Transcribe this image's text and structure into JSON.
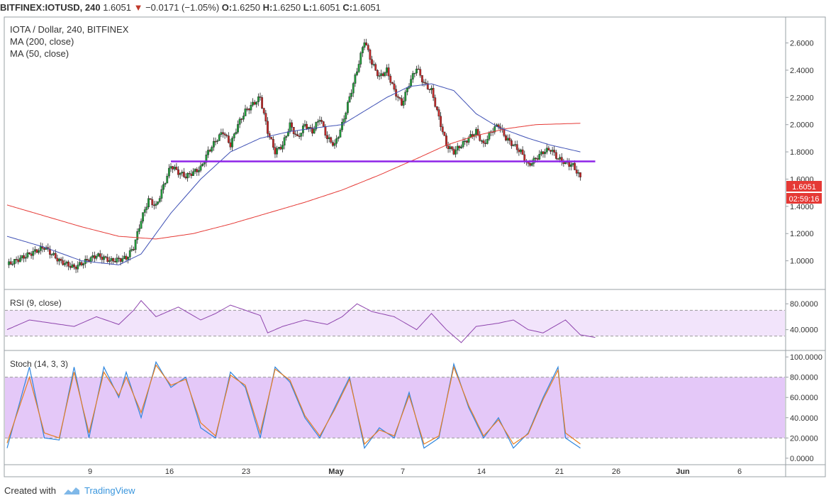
{
  "header": {
    "symbol": "BITFINEX:IOTUSD, 240",
    "last": "1.6051",
    "change": "−0.0171 (−1.05%)",
    "o_label": "O:",
    "o": "1.6250",
    "h_label": "H:",
    "h": "1.6250",
    "l_label": "L:",
    "l": "1.6051",
    "c_label": "C:",
    "c": "1.6051"
  },
  "legend": {
    "main": [
      "IOTA / Dollar, 240, BITFINEX",
      "MA (200, close)",
      "MA (50, close)"
    ],
    "rsi": "RSI (9, close)",
    "stoch": "Stoch (14, 3, 3)"
  },
  "price_badge": {
    "value": "1.6051",
    "countdown": "02:59:16"
  },
  "footer": {
    "created": "Created with",
    "brand": "TradingView"
  },
  "colors": {
    "up": "#1f9d3a",
    "down": "#c62828",
    "ma200": "#e53935",
    "ma50": "#3f51b5",
    "trendline": "#8e24e8",
    "rsi": "#8e44ad",
    "stoch_k": "#2e86de",
    "stoch_d": "#e67e22",
    "band": "#e4c8f8",
    "rsi_band": "#f2e4fb"
  },
  "chart_data": {
    "type": "candlestick",
    "timeframe": "240",
    "x_ticks": [
      "9",
      "16",
      "23",
      "May",
      "7",
      "14",
      "21",
      "26",
      "Jun",
      "6"
    ],
    "price_axis": {
      "ticks": [
        "2.6000",
        "2.4000",
        "2.2000",
        "2.0000",
        "1.8000",
        "1.6000",
        "1.4000",
        "1.2000",
        "1.0000"
      ],
      "ylim": [
        0.8,
        2.78
      ]
    },
    "price_path_close": [
      [
        0,
        0.97
      ],
      [
        3,
        1.05
      ],
      [
        5,
        1.1
      ],
      [
        7,
        1.0
      ],
      [
        9,
        0.95
      ],
      [
        10,
        0.98
      ],
      [
        12,
        1.04
      ],
      [
        14,
        1.0
      ],
      [
        16,
        1.02
      ],
      [
        17,
        1.1
      ],
      [
        18,
        1.3
      ],
      [
        19,
        1.45
      ],
      [
        20,
        1.4
      ],
      [
        21,
        1.55
      ],
      [
        22,
        1.7
      ],
      [
        23,
        1.65
      ],
      [
        24,
        1.62
      ],
      [
        25,
        1.65
      ],
      [
        26,
        1.68
      ],
      [
        27,
        1.8
      ],
      [
        28,
        1.88
      ],
      [
        29,
        1.95
      ],
      [
        30,
        1.85
      ],
      [
        31,
        2.0
      ],
      [
        32,
        2.1
      ],
      [
        33,
        2.15
      ],
      [
        34,
        2.2
      ],
      [
        35,
        1.95
      ],
      [
        36,
        1.8
      ],
      [
        37,
        1.85
      ],
      [
        38,
        2.0
      ],
      [
        39,
        1.9
      ],
      [
        40,
        2.0
      ],
      [
        41,
        1.95
      ],
      [
        42,
        2.05
      ],
      [
        43,
        1.9
      ],
      [
        44,
        1.85
      ],
      [
        45,
        2.0
      ],
      [
        46,
        2.2
      ],
      [
        47,
        2.4
      ],
      [
        48,
        2.62
      ],
      [
        49,
        2.45
      ],
      [
        50,
        2.35
      ],
      [
        51,
        2.4
      ],
      [
        52,
        2.25
      ],
      [
        53,
        2.15
      ],
      [
        54,
        2.3
      ],
      [
        55,
        2.42
      ],
      [
        56,
        2.3
      ],
      [
        57,
        2.25
      ],
      [
        58,
        2.05
      ],
      [
        59,
        1.85
      ],
      [
        60,
        1.8
      ],
      [
        61,
        1.85
      ],
      [
        62,
        1.9
      ],
      [
        63,
        1.95
      ],
      [
        64,
        1.85
      ],
      [
        65,
        1.95
      ],
      [
        66,
        2.0
      ],
      [
        67,
        1.9
      ],
      [
        68,
        1.85
      ],
      [
        69,
        1.8
      ],
      [
        70,
        1.7
      ],
      [
        71,
        1.75
      ],
      [
        72,
        1.8
      ],
      [
        73,
        1.82
      ],
      [
        74,
        1.75
      ],
      [
        75,
        1.72
      ],
      [
        76,
        1.7
      ],
      [
        77,
        1.61
      ]
    ],
    "ma200_path": [
      [
        0,
        1.41
      ],
      [
        5,
        1.33
      ],
      [
        10,
        1.25
      ],
      [
        15,
        1.18
      ],
      [
        20,
        1.16
      ],
      [
        25,
        1.2
      ],
      [
        30,
        1.27
      ],
      [
        35,
        1.35
      ],
      [
        40,
        1.43
      ],
      [
        45,
        1.52
      ],
      [
        50,
        1.63
      ],
      [
        55,
        1.75
      ],
      [
        59,
        1.85
      ],
      [
        63,
        1.92
      ],
      [
        67,
        1.97
      ],
      [
        71,
        2.0
      ],
      [
        77,
        2.01
      ]
    ],
    "ma50_path": [
      [
        0,
        1.18
      ],
      [
        5,
        1.1
      ],
      [
        10,
        1.0
      ],
      [
        15,
        0.97
      ],
      [
        18,
        1.05
      ],
      [
        22,
        1.35
      ],
      [
        26,
        1.6
      ],
      [
        30,
        1.8
      ],
      [
        34,
        1.9
      ],
      [
        38,
        1.95
      ],
      [
        42,
        1.98
      ],
      [
        45,
        2.0
      ],
      [
        48,
        2.1
      ],
      [
        51,
        2.2
      ],
      [
        54,
        2.28
      ],
      [
        57,
        2.3
      ],
      [
        60,
        2.25
      ],
      [
        63,
        2.08
      ],
      [
        66,
        1.98
      ],
      [
        70,
        1.9
      ],
      [
        73,
        1.85
      ],
      [
        77,
        1.8
      ]
    ],
    "trendline": {
      "x": [
        22,
        79
      ],
      "value": 1.73
    },
    "rsi": {
      "ylim": [
        10,
        100
      ],
      "ticks": [
        "80.0000",
        "40.0000"
      ],
      "band": [
        30,
        70
      ],
      "path": [
        [
          0,
          40
        ],
        [
          3,
          55
        ],
        [
          6,
          50
        ],
        [
          9,
          45
        ],
        [
          12,
          60
        ],
        [
          15,
          48
        ],
        [
          17,
          70
        ],
        [
          18,
          85
        ],
        [
          20,
          60
        ],
        [
          23,
          75
        ],
        [
          26,
          55
        ],
        [
          28,
          65
        ],
        [
          30,
          78
        ],
        [
          32,
          70
        ],
        [
          34,
          62
        ],
        [
          35,
          35
        ],
        [
          37,
          45
        ],
        [
          40,
          55
        ],
        [
          43,
          48
        ],
        [
          45,
          60
        ],
        [
          47,
          80
        ],
        [
          49,
          68
        ],
        [
          52,
          60
        ],
        [
          55,
          40
        ],
        [
          57,
          65
        ],
        [
          59,
          40
        ],
        [
          61,
          20
        ],
        [
          63,
          45
        ],
        [
          66,
          50
        ],
        [
          68,
          55
        ],
        [
          70,
          40
        ],
        [
          72,
          35
        ],
        [
          75,
          55
        ],
        [
          77,
          32
        ],
        [
          79,
          28
        ]
      ]
    },
    "stoch": {
      "ylim": [
        -5,
        105
      ],
      "ticks": [
        "100.0000",
        "80.0000",
        "60.0000",
        "40.0000",
        "20.0000",
        "0.0000"
      ],
      "band": [
        20,
        80
      ],
      "k_path": [
        [
          0,
          10
        ],
        [
          3,
          90
        ],
        [
          5,
          20
        ],
        [
          7,
          18
        ],
        [
          9,
          90
        ],
        [
          11,
          20
        ],
        [
          13,
          90
        ],
        [
          15,
          60
        ],
        [
          16,
          85
        ],
        [
          18,
          40
        ],
        [
          20,
          95
        ],
        [
          22,
          70
        ],
        [
          24,
          80
        ],
        [
          26,
          30
        ],
        [
          28,
          20
        ],
        [
          30,
          85
        ],
        [
          32,
          70
        ],
        [
          34,
          20
        ],
        [
          36,
          90
        ],
        [
          38,
          75
        ],
        [
          40,
          40
        ],
        [
          42,
          20
        ],
        [
          44,
          50
        ],
        [
          46,
          80
        ],
        [
          48,
          10
        ],
        [
          50,
          30
        ],
        [
          52,
          20
        ],
        [
          54,
          65
        ],
        [
          56,
          10
        ],
        [
          58,
          20
        ],
        [
          60,
          93
        ],
        [
          62,
          50
        ],
        [
          64,
          20
        ],
        [
          66,
          40
        ],
        [
          68,
          10
        ],
        [
          70,
          25
        ],
        [
          72,
          60
        ],
        [
          74,
          90
        ],
        [
          75,
          20
        ],
        [
          77,
          10
        ]
      ],
      "d_path": [
        [
          0,
          15
        ],
        [
          3,
          80
        ],
        [
          5,
          25
        ],
        [
          7,
          20
        ],
        [
          9,
          85
        ],
        [
          11,
          25
        ],
        [
          13,
          85
        ],
        [
          15,
          62
        ],
        [
          16,
          80
        ],
        [
          18,
          45
        ],
        [
          20,
          92
        ],
        [
          22,
          72
        ],
        [
          24,
          78
        ],
        [
          26,
          35
        ],
        [
          28,
          22
        ],
        [
          30,
          82
        ],
        [
          32,
          72
        ],
        [
          34,
          25
        ],
        [
          36,
          88
        ],
        [
          38,
          77
        ],
        [
          40,
          42
        ],
        [
          42,
          22
        ],
        [
          44,
          48
        ],
        [
          46,
          78
        ],
        [
          48,
          14
        ],
        [
          50,
          28
        ],
        [
          52,
          22
        ],
        [
          54,
          62
        ],
        [
          56,
          14
        ],
        [
          58,
          22
        ],
        [
          60,
          90
        ],
        [
          62,
          52
        ],
        [
          64,
          22
        ],
        [
          66,
          38
        ],
        [
          68,
          14
        ],
        [
          70,
          24
        ],
        [
          72,
          58
        ],
        [
          74,
          87
        ],
        [
          75,
          25
        ],
        [
          77,
          14
        ]
      ]
    }
  }
}
